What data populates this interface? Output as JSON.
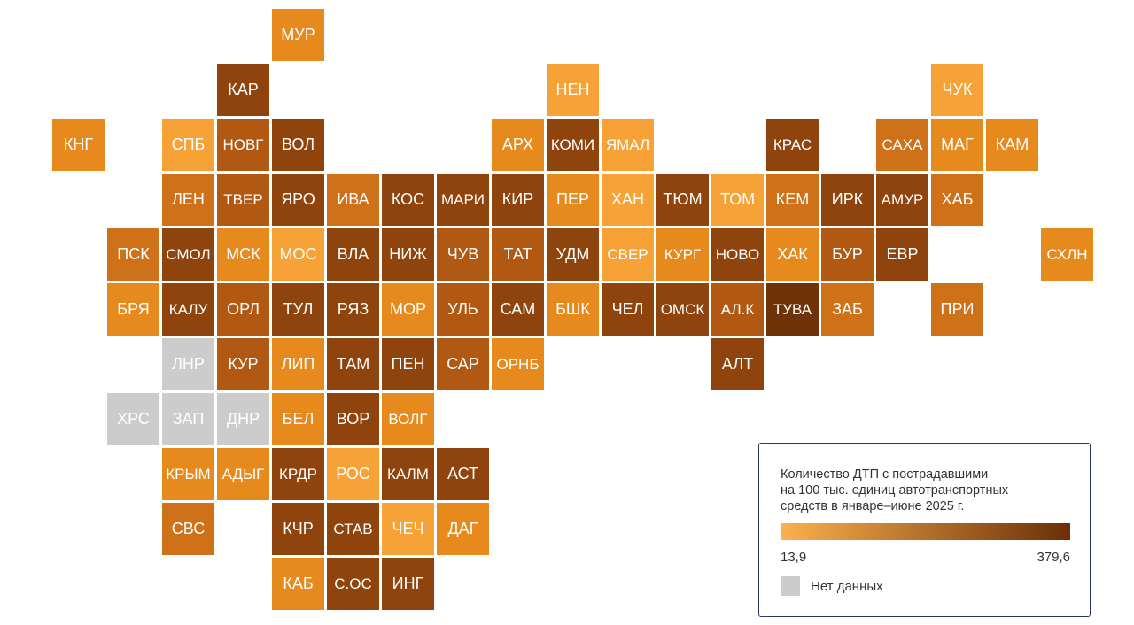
{
  "colors": {
    "level1": "#f7a236",
    "level2": "#e78a1e",
    "level3": "#cf7118",
    "level4": "#b15913",
    "level5": "#8f440d",
    "level6": "#6f3309",
    "no_data": "#cccccc",
    "gradient_start": "#fbb14d",
    "gradient_end": "#6a2f08"
  },
  "legend": {
    "title": "Количество ДТП с пострадавшими\nна 100 тыс. единиц автотранспортных\nсредств в январе–июне 2025 г.",
    "min": "13,9",
    "max": "379,6",
    "no_data_label": "Нет данных"
  },
  "regions": [
    {
      "code": "МУР",
      "level": 2
    },
    {
      "code": "КАР",
      "level": 5
    },
    {
      "code": "НЕН",
      "level": 1
    },
    {
      "code": "ЧУК",
      "level": 1
    },
    {
      "code": "КНГ",
      "level": 2
    },
    {
      "code": "СПБ",
      "level": 1
    },
    {
      "code": "НОВГ",
      "level": 4
    },
    {
      "code": "ВОЛ",
      "level": 5
    },
    {
      "code": "АРХ",
      "level": 2
    },
    {
      "code": "КОМИ",
      "level": 5
    },
    {
      "code": "ЯМАЛ",
      "level": 1
    },
    {
      "code": "КРАС",
      "level": 5
    },
    {
      "code": "САХА",
      "level": 3
    },
    {
      "code": "МАГ",
      "level": 2
    },
    {
      "code": "КАМ",
      "level": 2
    },
    {
      "code": "ЛЕН",
      "level": 3
    },
    {
      "code": "ТВЕР",
      "level": 4
    },
    {
      "code": "ЯРО",
      "level": 5
    },
    {
      "code": "ИВА",
      "level": 3
    },
    {
      "code": "КОС",
      "level": 5
    },
    {
      "code": "МАРИ",
      "level": 5
    },
    {
      "code": "КИР",
      "level": 5
    },
    {
      "code": "ПЕР",
      "level": 2
    },
    {
      "code": "ХАН",
      "level": 1
    },
    {
      "code": "ТЮМ",
      "level": 5
    },
    {
      "code": "ТОМ",
      "level": 1
    },
    {
      "code": "КЕМ",
      "level": 3
    },
    {
      "code": "ИРК",
      "level": 5
    },
    {
      "code": "АМУР",
      "level": 5
    },
    {
      "code": "ХАБ",
      "level": 3
    },
    {
      "code": "ПСК",
      "level": 3
    },
    {
      "code": "СМОЛ",
      "level": 5
    },
    {
      "code": "МСК",
      "level": 2
    },
    {
      "code": "МОС",
      "level": 1
    },
    {
      "code": "ВЛА",
      "level": 5
    },
    {
      "code": "НИЖ",
      "level": 5
    },
    {
      "code": "ЧУВ",
      "level": 4
    },
    {
      "code": "ТАТ",
      "level": 4
    },
    {
      "code": "УДМ",
      "level": 5
    },
    {
      "code": "СВЕР",
      "level": 1
    },
    {
      "code": "КУРГ",
      "level": 2
    },
    {
      "code": "НОВО",
      "level": 5
    },
    {
      "code": "ХАК",
      "level": 2
    },
    {
      "code": "БУР",
      "level": 4
    },
    {
      "code": "ЕВР",
      "level": 5
    },
    {
      "code": "СХЛН",
      "level": 2
    },
    {
      "code": "БРЯ",
      "level": 2
    },
    {
      "code": "КАЛУ",
      "level": 5
    },
    {
      "code": "ОРЛ",
      "level": 4
    },
    {
      "code": "ТУЛ",
      "level": 5
    },
    {
      "code": "РЯЗ",
      "level": 5
    },
    {
      "code": "МОР",
      "level": 2
    },
    {
      "code": "УЛЬ",
      "level": 4
    },
    {
      "code": "САМ",
      "level": 5
    },
    {
      "code": "БШК",
      "level": 2
    },
    {
      "code": "ЧЕЛ",
      "level": 5
    },
    {
      "code": "ОМСК",
      "level": 5
    },
    {
      "code": "АЛ.К",
      "level": 4
    },
    {
      "code": "ТУВА",
      "level": 6
    },
    {
      "code": "ЗАБ",
      "level": 3
    },
    {
      "code": "ПРИ",
      "level": 3
    },
    {
      "code": "ЛНР",
      "level": 0
    },
    {
      "code": "КУР",
      "level": 4
    },
    {
      "code": "ЛИП",
      "level": 2
    },
    {
      "code": "ТАМ",
      "level": 5
    },
    {
      "code": "ПЕН",
      "level": 5
    },
    {
      "code": "САР",
      "level": 4
    },
    {
      "code": "ОРНБ",
      "level": 2
    },
    {
      "code": "АЛТ",
      "level": 5
    },
    {
      "code": "ХРС",
      "level": 0
    },
    {
      "code": "ЗАП",
      "level": 0
    },
    {
      "code": "ДНР",
      "level": 0
    },
    {
      "code": "БЕЛ",
      "level": 2
    },
    {
      "code": "ВОР",
      "level": 5
    },
    {
      "code": "ВОЛГ",
      "level": 2
    },
    {
      "code": "КРЫМ",
      "level": 2
    },
    {
      "code": "АДЫГ",
      "level": 2
    },
    {
      "code": "КРДР",
      "level": 5
    },
    {
      "code": "РОС",
      "level": 1
    },
    {
      "code": "КАЛМ",
      "level": 5
    },
    {
      "code": "АСТ",
      "level": 5
    },
    {
      "code": "СВС",
      "level": 3
    },
    {
      "code": "КЧР",
      "level": 5
    },
    {
      "code": "СТАВ",
      "level": 5
    },
    {
      "code": "ЧЕЧ",
      "level": 1
    },
    {
      "code": "ДАГ",
      "level": 2
    },
    {
      "code": "КАБ",
      "level": 2
    },
    {
      "code": "С.ОС",
      "level": 5
    },
    {
      "code": "ИНГ",
      "level": 5
    }
  ]
}
